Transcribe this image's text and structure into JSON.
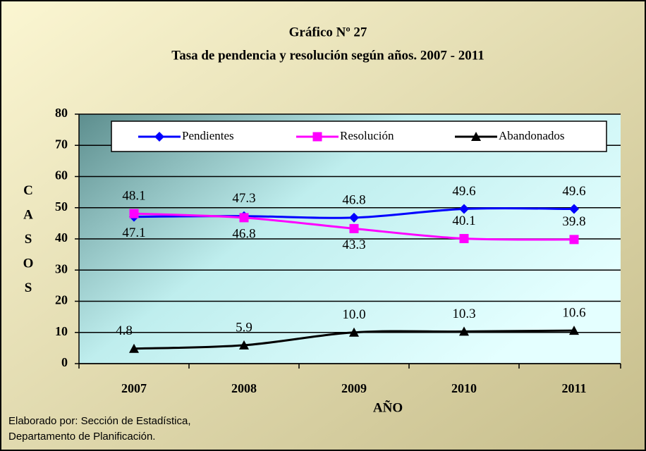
{
  "chart_data": {
    "type": "line",
    "title": "Gráfico Nº 27",
    "subtitle": "Tasa de pendencia y resolución según años. 2007 - 2011",
    "x_label": "AÑO",
    "y_label": "CASOS",
    "categories": [
      "2007",
      "2008",
      "2009",
      "2010",
      "2011"
    ],
    "series": [
      {
        "name": "Pendientes",
        "color": "#0000ff",
        "marker": "diamond",
        "values": [
          47.1,
          47.3,
          46.8,
          49.6,
          49.6
        ]
      },
      {
        "name": "Resolución",
        "color": "#ff00ff",
        "marker": "square",
        "values": [
          48.1,
          46.8,
          43.3,
          40.1,
          39.8
        ]
      },
      {
        "name": "Abandonados",
        "color": "#000000",
        "marker": "triangle",
        "values": [
          4.8,
          5.9,
          10,
          10.3,
          10.6
        ],
        "value_labels": [
          "4.8",
          "5.9",
          "10.0",
          "10.3",
          "10.6"
        ]
      }
    ],
    "ylim": [
      0,
      80
    ],
    "yticks": [
      0,
      10,
      20,
      30,
      40,
      50,
      60,
      70,
      80
    ],
    "grid": true,
    "legend": "top",
    "footnote": [
      "Elaborado por: Sección de Estadística,",
      "Departamento de Planificación."
    ]
  }
}
